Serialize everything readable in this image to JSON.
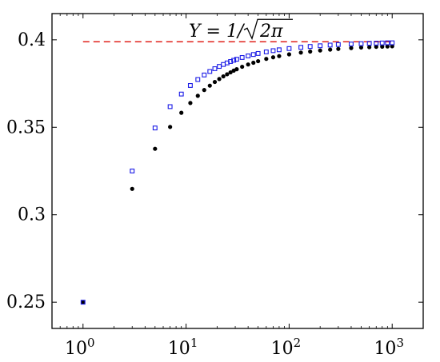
{
  "chart_data": {
    "type": "scatter",
    "title": "",
    "xlabel": "",
    "ylabel": "",
    "x_scale": "log",
    "xlim": [
      0.5,
      2000
    ],
    "ylim": [
      0.235,
      0.415
    ],
    "grid": false,
    "x_ticks": [
      {
        "value": 1,
        "base": "10",
        "exp": "0"
      },
      {
        "value": 10,
        "base": "10",
        "exp": "1"
      },
      {
        "value": 100,
        "base": "10",
        "exp": "2"
      },
      {
        "value": 1000,
        "base": "10",
        "exp": "3"
      }
    ],
    "y_ticks": [
      {
        "value": 0.25,
        "label": "0.25"
      },
      {
        "value": 0.3,
        "label": "0.3"
      },
      {
        "value": 0.35,
        "label": "0.35"
      },
      {
        "value": 0.4,
        "label": "0.4"
      }
    ],
    "reference_line": {
      "y": 0.3989,
      "x_range": [
        1,
        1000
      ],
      "color": "#e0201a",
      "style": "dashed",
      "label": "Y = 1/√2π"
    },
    "series": [
      {
        "marker": "circle-filled",
        "color": "#000000",
        "x": [
          1,
          3,
          5,
          7,
          9,
          11,
          13,
          15,
          17,
          19,
          21,
          23,
          25,
          27,
          29,
          31,
          35,
          40,
          45,
          50,
          60,
          70,
          80,
          100,
          130,
          160,
          200,
          250,
          300,
          400,
          500,
          600,
          700,
          800,
          900,
          1000
        ],
        "y": [
          0.25,
          0.3148,
          0.3377,
          0.3502,
          0.3583,
          0.3639,
          0.368,
          0.3713,
          0.3738,
          0.3759,
          0.3776,
          0.3791,
          0.3803,
          0.3814,
          0.3824,
          0.3832,
          0.3846,
          0.3859,
          0.3869,
          0.3878,
          0.3891,
          0.39,
          0.3907,
          0.3917,
          0.3927,
          0.3933,
          0.3939,
          0.3944,
          0.3948,
          0.3953,
          0.3956,
          0.3958,
          0.396,
          0.3961,
          0.3962,
          0.3963
        ]
      },
      {
        "marker": "square-open",
        "color": "#1a1ae6",
        "x": [
          1,
          3,
          5,
          7,
          9,
          11,
          13,
          15,
          17,
          19,
          21,
          23,
          25,
          27,
          29,
          31,
          35,
          40,
          45,
          50,
          60,
          70,
          80,
          100,
          130,
          160,
          200,
          250,
          300,
          400,
          500,
          600,
          700,
          800,
          900,
          1000
        ],
        "y": [
          0.25,
          0.325,
          0.3496,
          0.3618,
          0.369,
          0.3739,
          0.3773,
          0.3799,
          0.3819,
          0.3835,
          0.3848,
          0.3859,
          0.3868,
          0.3876,
          0.3883,
          0.3889,
          0.3899,
          0.3908,
          0.3916,
          0.3922,
          0.3931,
          0.3938,
          0.3943,
          0.395,
          0.3957,
          0.3962,
          0.3966,
          0.397,
          0.3973,
          0.3976,
          0.3978,
          0.398,
          0.3981,
          0.3982,
          0.3983,
          0.3983
        ]
      }
    ]
  }
}
